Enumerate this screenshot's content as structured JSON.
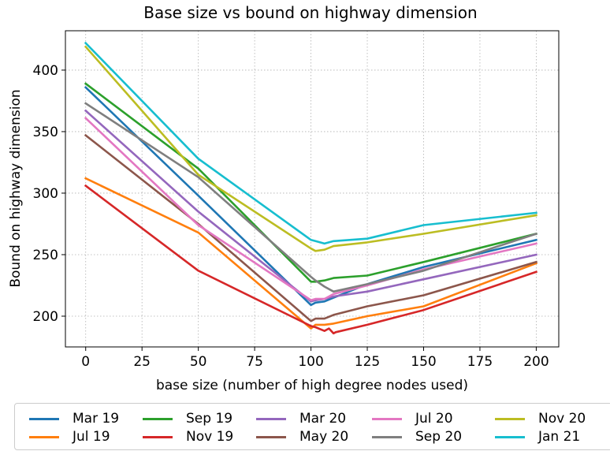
{
  "chart_data": {
    "type": "line",
    "title": "Base size vs bound on highway dimension",
    "xlabel": "base size (number of high degree nodes used)",
    "ylabel": "Bound on highway dimension",
    "xlim": [
      -9,
      210
    ],
    "ylim": [
      175,
      432
    ],
    "xticks": [
      0,
      25,
      50,
      75,
      100,
      125,
      150,
      175,
      200
    ],
    "yticks": [
      200,
      250,
      300,
      350,
      400
    ],
    "grid": true,
    "legend_position": "bottom, outside",
    "series": [
      {
        "name": "Mar 19",
        "color": "#1f77b4",
        "x": [
          0,
          50,
          100,
          102,
          106,
          110,
          125,
          150,
          200
        ],
        "y": [
          386,
          298,
          209,
          211,
          212,
          215,
          226,
          240,
          262
        ]
      },
      {
        "name": "Jul 19",
        "color": "#ff7f0e",
        "x": [
          0,
          50,
          100,
          102,
          106,
          110,
          125,
          150,
          200
        ],
        "y": [
          312,
          268,
          190,
          193,
          193,
          194,
          200,
          208,
          243
        ]
      },
      {
        "name": "Sep 19",
        "color": "#2ca02c",
        "x": [
          0,
          50,
          100,
          102,
          106,
          110,
          125,
          150,
          200
        ],
        "y": [
          389,
          320,
          228,
          228,
          229,
          231,
          233,
          244,
          267
        ]
      },
      {
        "name": "Nov 19",
        "color": "#d62728",
        "x": [
          0,
          50,
          100,
          102,
          106,
          108,
          110,
          111,
          125,
          150,
          200
        ],
        "y": [
          306,
          237,
          192,
          191,
          188,
          190,
          186,
          187,
          193,
          205,
          236
        ]
      },
      {
        "name": "Mar 20",
        "color": "#9467bd",
        "x": [
          0,
          50,
          100,
          102,
          106,
          110,
          125,
          150,
          200
        ],
        "y": [
          367,
          285,
          212,
          213,
          214,
          216,
          220,
          230,
          250
        ]
      },
      {
        "name": "May 20",
        "color": "#8c564b",
        "x": [
          0,
          50,
          100,
          102,
          106,
          110,
          125,
          150,
          200
        ],
        "y": [
          347,
          275,
          196,
          198,
          198,
          201,
          208,
          217,
          244
        ]
      },
      {
        "name": "Jul 20",
        "color": "#e377c2",
        "x": [
          0,
          50,
          100,
          102,
          106,
          110,
          125,
          150,
          200
        ],
        "y": [
          361,
          274,
          213,
          214,
          214,
          218,
          225,
          238,
          259
        ]
      },
      {
        "name": "Sep 20",
        "color": "#7f7f7f",
        "x": [
          0,
          50,
          100,
          102,
          106,
          110,
          125,
          150,
          200
        ],
        "y": [
          373,
          313,
          232,
          229,
          224,
          220,
          226,
          237,
          267
        ]
      },
      {
        "name": "Nov 20",
        "color": "#bcbd22",
        "x": [
          0,
          50,
          100,
          102,
          106,
          110,
          125,
          150,
          200
        ],
        "y": [
          419,
          315,
          255,
          253,
          254,
          257,
          260,
          267,
          282
        ]
      },
      {
        "name": "Jan 21",
        "color": "#17becf",
        "x": [
          0,
          50,
          100,
          102,
          106,
          110,
          125,
          150,
          200
        ],
        "y": [
          422,
          328,
          262,
          261,
          259,
          261,
          263,
          274,
          284
        ]
      }
    ]
  }
}
